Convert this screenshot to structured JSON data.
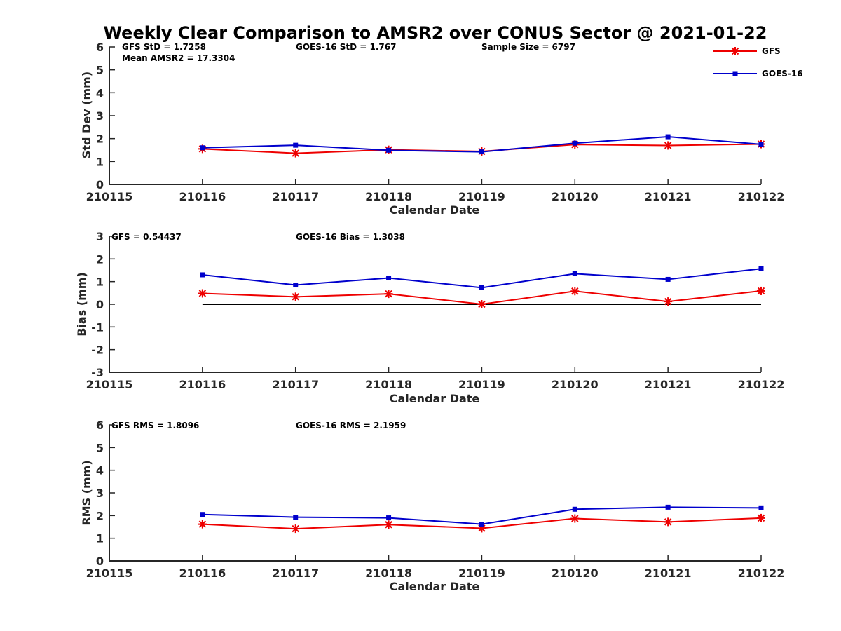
{
  "title": "Weekly Clear Comparison to AMSR2 over CONUS Sector @ 2021-01-22",
  "legend": {
    "position": "top-right",
    "entries": [
      {
        "name": "GFS",
        "color": "#ee0000",
        "marker": "asterisk"
      },
      {
        "name": "GOES-16",
        "color": "#0000cc",
        "marker": "square"
      }
    ]
  },
  "chart_data": [
    {
      "type": "line",
      "ylabel": "Std Dev (mm)",
      "xlabel": "Calendar Date",
      "ylim": [
        0,
        6
      ],
      "yticks": [
        0,
        1,
        2,
        3,
        4,
        5,
        6
      ],
      "ytick_labels": [
        "0",
        "1",
        "2",
        "3",
        "4",
        "5",
        "6"
      ],
      "x_tick_labels": [
        "210115",
        "210116",
        "210117",
        "210118",
        "210119",
        "210120",
        "210121",
        "210122"
      ],
      "x": [
        "210116",
        "210117",
        "210118",
        "210119",
        "210120",
        "210121",
        "210122"
      ],
      "series": [
        {
          "name": "GFS",
          "color": "#ee0000",
          "values": [
            1.55,
            1.36,
            1.51,
            1.44,
            1.74,
            1.7,
            1.76
          ]
        },
        {
          "name": "GOES-16",
          "color": "#0000cc",
          "values": [
            1.6,
            1.71,
            1.49,
            1.42,
            1.8,
            2.08,
            1.75
          ]
        }
      ],
      "reference_line": null,
      "annotations": [
        "GFS StD = 1.7258",
        "GOES-16 StD = 1.767",
        "Sample Size = 6797",
        "Mean AMSR2 = 17.3304"
      ]
    },
    {
      "type": "line",
      "ylabel": "Bias (mm)",
      "xlabel": "Calendar Date",
      "ylim": [
        -3,
        3
      ],
      "yticks": [
        -3,
        -2,
        -1,
        0,
        1,
        2,
        3
      ],
      "ytick_labels": [
        "-3",
        "-2",
        "-1",
        "0",
        "1",
        "2",
        "3"
      ],
      "x_tick_labels": [
        "210115",
        "210116",
        "210117",
        "210118",
        "210119",
        "210120",
        "210121",
        "210122"
      ],
      "x": [
        "210116",
        "210117",
        "210118",
        "210119",
        "210120",
        "210121",
        "210122"
      ],
      "series": [
        {
          "name": "GFS",
          "color": "#ee0000",
          "values": [
            0.48,
            0.33,
            0.46,
            0.0,
            0.58,
            0.12,
            0.59
          ]
        },
        {
          "name": "GOES-16",
          "color": "#0000cc",
          "values": [
            1.3,
            0.85,
            1.16,
            0.73,
            1.35,
            1.1,
            1.57
          ]
        }
      ],
      "reference_line": 0,
      "annotations": [
        "GFS = 0.54437",
        "GOES-16 Bias  = 1.3038"
      ]
    },
    {
      "type": "line",
      "ylabel": "RMS (mm)",
      "xlabel": "Calendar Date",
      "ylim": [
        0,
        6
      ],
      "yticks": [
        0,
        1,
        2,
        3,
        4,
        5,
        6
      ],
      "ytick_labels": [
        "0",
        "1",
        "2",
        "3",
        "4",
        "5",
        "6"
      ],
      "x_tick_labels": [
        "210115",
        "210116",
        "210117",
        "210118",
        "210119",
        "210120",
        "210121",
        "210122"
      ],
      "x": [
        "210116",
        "210117",
        "210118",
        "210119",
        "210120",
        "210121",
        "210122"
      ],
      "series": [
        {
          "name": "GFS",
          "color": "#ee0000",
          "values": [
            1.62,
            1.42,
            1.6,
            1.44,
            1.87,
            1.72,
            1.89
          ]
        },
        {
          "name": "GOES-16",
          "color": "#0000cc",
          "values": [
            2.05,
            1.93,
            1.9,
            1.62,
            2.28,
            2.37,
            2.34
          ]
        }
      ],
      "reference_line": null,
      "annotations": [
        "GFS RMS = 1.8096",
        "GOES-16 RMS = 2.1959"
      ]
    }
  ]
}
